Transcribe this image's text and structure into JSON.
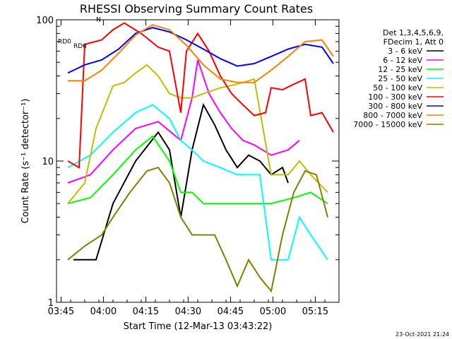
{
  "chart_data": {
    "type": "line",
    "title": "RHESSI Observing Summary Count Rates",
    "xlabel": "Start Time (12-Mar-13 03:43:22)",
    "ylabel": "Count Rate (s⁻¹ detector⁻¹)",
    "yscale": "log",
    "ylim": [
      1,
      100
    ],
    "xlim_minutes_after_0343": [
      0,
      100
    ],
    "xticks": [
      {
        "label": "03:45",
        "min": 1.6
      },
      {
        "label": "04:00",
        "min": 16.6
      },
      {
        "label": "04:15",
        "min": 31.6
      },
      {
        "label": "04:30",
        "min": 46.6
      },
      {
        "label": "04:45",
        "min": 61.6
      },
      {
        "label": "05:00",
        "min": 76.6
      },
      {
        "label": "05:15",
        "min": 91.6
      }
    ],
    "yticks": [
      {
        "label": "1",
        "value": 1
      },
      {
        "label": "10",
        "value": 10
      },
      {
        "label": "100",
        "value": 100
      }
    ],
    "legend_header": [
      "Det 1,3,4,5,6,9,",
      "FDecim 1, Att 0"
    ],
    "legend_placement": "right",
    "timestamp": "23-Oct-2021 21:24",
    "annotations": [
      {
        "text": "N",
        "min": 14,
        "value": 97
      },
      {
        "text": "RD0",
        "min": 0.5,
        "value": 68
      },
      {
        "text": "RD6",
        "min": 6,
        "value": 63
      }
    ],
    "series": [
      {
        "name": "3 - 6 keV",
        "color": "#000000",
        "points": [
          [
            6,
            2
          ],
          [
            14,
            2
          ],
          [
            20,
            5
          ],
          [
            28,
            10
          ],
          [
            36,
            16
          ],
          [
            40,
            12
          ],
          [
            44,
            4
          ],
          [
            48,
            12
          ],
          [
            52,
            25
          ],
          [
            56,
            18
          ],
          [
            60,
            12
          ],
          [
            64,
            9
          ],
          [
            68,
            11
          ],
          [
            72,
            10
          ],
          [
            76,
            8
          ],
          [
            80,
            9
          ],
          [
            82,
            7
          ]
        ]
      },
      {
        "name": "6 - 12 keV",
        "color": "#ff00ff",
        "points": [
          [
            4,
            7
          ],
          [
            12,
            8
          ],
          [
            20,
            12
          ],
          [
            28,
            17
          ],
          [
            36,
            19
          ],
          [
            44,
            14
          ],
          [
            48,
            28
          ],
          [
            50,
            52
          ],
          [
            54,
            30
          ],
          [
            58,
            22
          ],
          [
            62,
            17
          ],
          [
            66,
            14
          ],
          [
            70,
            13
          ],
          [
            76,
            11
          ],
          [
            82,
            12
          ],
          [
            86,
            14
          ]
        ]
      },
      {
        "name": "12 - 25 keV",
        "color": "#00ff00",
        "points": [
          [
            4,
            5
          ],
          [
            12,
            5.5
          ],
          [
            20,
            8
          ],
          [
            28,
            12
          ],
          [
            34,
            15
          ],
          [
            40,
            10
          ],
          [
            44,
            6
          ],
          [
            48,
            6
          ],
          [
            52,
            5
          ],
          [
            60,
            5
          ],
          [
            68,
            5
          ],
          [
            76,
            5
          ],
          [
            84,
            5.5
          ],
          [
            90,
            6
          ],
          [
            96,
            5
          ]
        ]
      },
      {
        "name": "25 - 50 keV",
        "color": "#00ffff",
        "points": [
          [
            4,
            9
          ],
          [
            12,
            11
          ],
          [
            20,
            16
          ],
          [
            28,
            22
          ],
          [
            34,
            25
          ],
          [
            40,
            20
          ],
          [
            44,
            14
          ],
          [
            48,
            12
          ],
          [
            52,
            10
          ],
          [
            58,
            9
          ],
          [
            64,
            8
          ],
          [
            72,
            8
          ],
          [
            76,
            2
          ],
          [
            82,
            2
          ],
          [
            86,
            4
          ],
          [
            90,
            3
          ],
          [
            96,
            2
          ]
        ]
      },
      {
        "name": "50 - 100 keV",
        "color": "#bfbf00",
        "points": [
          [
            4,
            5
          ],
          [
            10,
            7
          ],
          [
            14,
            17
          ],
          [
            20,
            34
          ],
          [
            24,
            36
          ],
          [
            28,
            42
          ],
          [
            32,
            48
          ],
          [
            36,
            40
          ],
          [
            40,
            30
          ],
          [
            44,
            28
          ],
          [
            48,
            28
          ],
          [
            52,
            30
          ],
          [
            58,
            33
          ],
          [
            64,
            35
          ],
          [
            70,
            38
          ],
          [
            76,
            8
          ],
          [
            82,
            8
          ],
          [
            86,
            10
          ],
          [
            90,
            8
          ],
          [
            96,
            6
          ]
        ]
      },
      {
        "name": "100 - 300 keV",
        "color": "#ff0000",
        "points": [
          [
            4,
            10
          ],
          [
            8,
            9
          ],
          [
            10,
            67
          ],
          [
            16,
            72
          ],
          [
            20,
            85
          ],
          [
            24,
            95
          ],
          [
            30,
            80
          ],
          [
            36,
            64
          ],
          [
            40,
            60
          ],
          [
            44,
            22
          ],
          [
            46,
            60
          ],
          [
            50,
            80
          ],
          [
            54,
            60
          ],
          [
            58,
            40
          ],
          [
            62,
            30
          ],
          [
            66,
            25
          ],
          [
            70,
            21
          ],
          [
            74,
            22
          ],
          [
            76,
            33
          ],
          [
            80,
            32
          ],
          [
            84,
            35
          ],
          [
            88,
            38
          ],
          [
            90,
            21
          ],
          [
            94,
            22
          ],
          [
            98,
            16
          ]
        ]
      },
      {
        "name": "300 - 800 keV",
        "color": "#0000ff",
        "points": [
          [
            4,
            42
          ],
          [
            10,
            48
          ],
          [
            16,
            52
          ],
          [
            22,
            62
          ],
          [
            28,
            80
          ],
          [
            34,
            88
          ],
          [
            40,
            82
          ],
          [
            46,
            72
          ],
          [
            52,
            62
          ],
          [
            58,
            53
          ],
          [
            64,
            47
          ],
          [
            70,
            49
          ],
          [
            76,
            55
          ],
          [
            82,
            62
          ],
          [
            88,
            67
          ],
          [
            94,
            64
          ],
          [
            98,
            49
          ]
        ]
      },
      {
        "name": "800 - 7000 keV",
        "color": "#ff8000",
        "points": [
          [
            4,
            37
          ],
          [
            10,
            37
          ],
          [
            16,
            44
          ],
          [
            22,
            58
          ],
          [
            28,
            78
          ],
          [
            34,
            92
          ],
          [
            40,
            85
          ],
          [
            46,
            66
          ],
          [
            52,
            48
          ],
          [
            58,
            38
          ],
          [
            64,
            36
          ],
          [
            70,
            36
          ],
          [
            76,
            44
          ],
          [
            82,
            55
          ],
          [
            88,
            70
          ],
          [
            94,
            72
          ],
          [
            98,
            55
          ]
        ]
      },
      {
        "name": "7000 - 15000 keV",
        "color": "#808000",
        "points": [
          [
            4,
            2
          ],
          [
            10,
            2.5
          ],
          [
            16,
            3
          ],
          [
            20,
            4
          ],
          [
            26,
            6
          ],
          [
            32,
            8.5
          ],
          [
            36,
            9
          ],
          [
            40,
            7
          ],
          [
            44,
            4
          ],
          [
            48,
            3
          ],
          [
            56,
            3
          ],
          [
            60,
            2
          ],
          [
            64,
            1.3
          ],
          [
            68,
            2
          ],
          [
            72,
            1.5
          ],
          [
            76,
            1.2
          ],
          [
            80,
            3
          ],
          [
            84,
            6
          ],
          [
            88,
            8.5
          ],
          [
            92,
            8
          ],
          [
            96,
            4
          ]
        ]
      }
    ]
  }
}
